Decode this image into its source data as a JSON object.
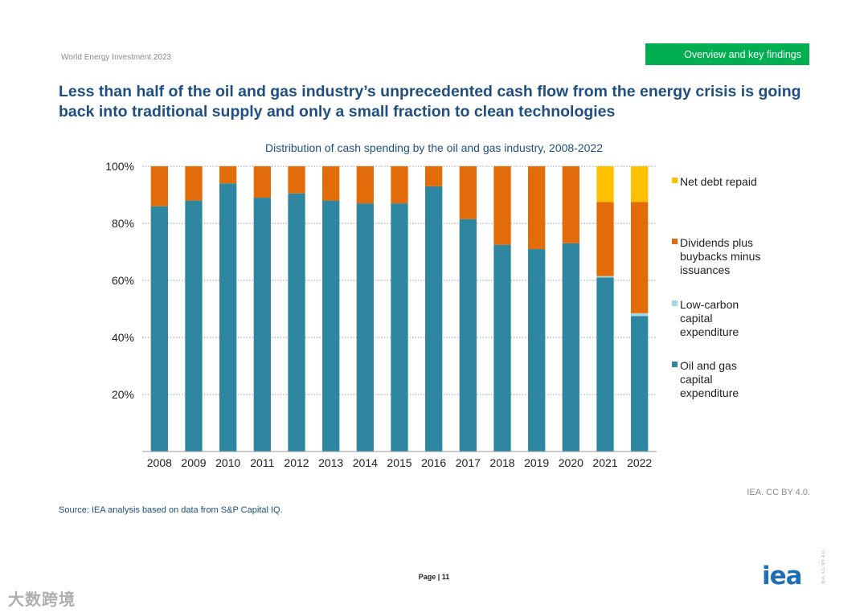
{
  "header": {
    "report_name": "World Energy Investment 2023",
    "section_tag": "Overview and key findings"
  },
  "headline": "Less than half of the oil and gas industry’s unprecedented cash flow from the energy crisis is going back into traditional supply and only a small fraction to clean technologies",
  "footer": {
    "credit": "IEA. CC BY 4.0.",
    "source": "Source: IEA analysis based on data from S&P Capital IQ.",
    "page": "Page | 11",
    "logo": "iea",
    "side_license": "IEA. CC BY 4.0.",
    "watermark": "大数跨境"
  },
  "colors": {
    "oil_gas": "#2e86a0",
    "low_carbon": "#a6d6e0",
    "dividends": "#e36c0a",
    "net_debt": "#ffc000",
    "title_blue": "#1f4f80",
    "green_tag": "#00b050"
  },
  "chart_data": {
    "type": "bar",
    "stacked": true,
    "title": "Distribution of cash spending by the oil and gas industry, 2008-2022",
    "xlabel": "",
    "ylabel": "",
    "ylim": [
      0,
      100
    ],
    "yticks": [
      "20%",
      "40%",
      "60%",
      "80%",
      "100%"
    ],
    "ytick_values": [
      20,
      40,
      60,
      80,
      100
    ],
    "legend_position": "right",
    "categories": [
      "2008",
      "2009",
      "2010",
      "2011",
      "2012",
      "2013",
      "2014",
      "2015",
      "2016",
      "2017",
      "2018",
      "2019",
      "2020",
      "2021",
      "2022"
    ],
    "series": [
      {
        "name": "Oil and gas capital expenditure",
        "color": "#2e86a0",
        "values": [
          86,
          88,
          94,
          89,
          90.5,
          88,
          87,
          87,
          93,
          81.5,
          72.5,
          71,
          73,
          61,
          47.5
        ]
      },
      {
        "name": "Low-carbon capital expenditure",
        "color": "#a6d6e0",
        "values": [
          0,
          0,
          0,
          0,
          0,
          0,
          0,
          0,
          0,
          0,
          0,
          0,
          0,
          0.5,
          1
        ]
      },
      {
        "name": "Dividends plus buybacks minus issuances",
        "color": "#e36c0a",
        "values": [
          14,
          12,
          6,
          11,
          9.5,
          12,
          13,
          13,
          7,
          18.5,
          27.5,
          29,
          27,
          26,
          39
        ]
      },
      {
        "name": "Net debt repaid",
        "color": "#ffc000",
        "values": [
          0,
          0,
          0,
          0,
          0,
          0,
          0,
          0,
          0,
          0,
          0,
          0,
          0,
          12.5,
          12.5
        ]
      }
    ],
    "legend": [
      {
        "label": "Net debt repaid",
        "color": "#ffc000"
      },
      {
        "label": "Dividends plus buybacks minus issuances",
        "color": "#e36c0a"
      },
      {
        "label": "Low-carbon capital expenditure",
        "color": "#a6d6e0"
      },
      {
        "label": "Oil and gas capital expenditure",
        "color": "#2e86a0"
      }
    ]
  }
}
